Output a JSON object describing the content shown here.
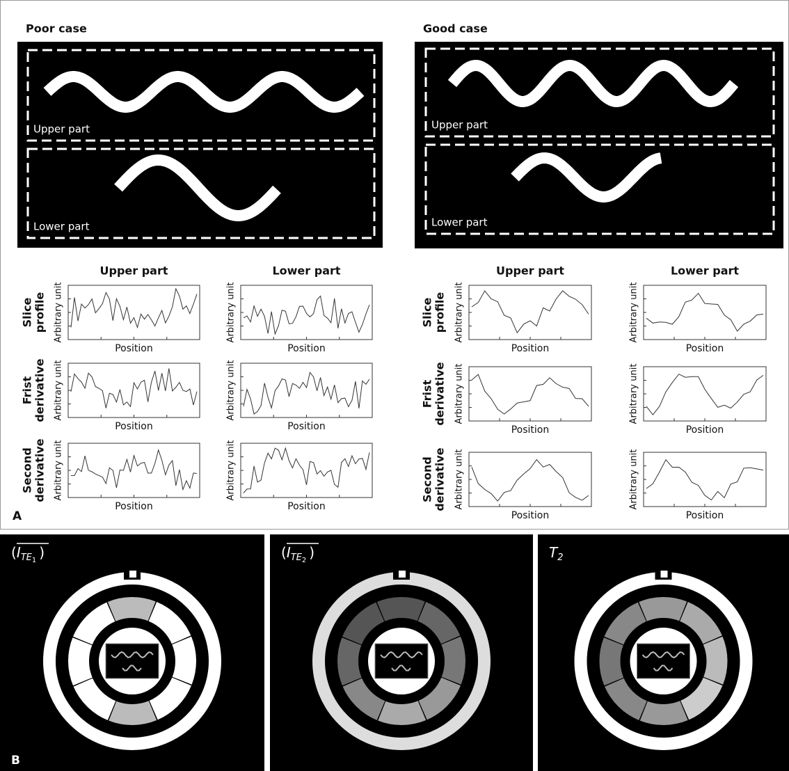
{
  "panel_a": {
    "label": "A",
    "y_label": "Arbitrary unit",
    "x_label": "Position",
    "row_labels": [
      [
        "Slice",
        "profile"
      ],
      [
        "Frist",
        "derivative"
      ],
      [
        "Second",
        "derivative"
      ]
    ],
    "cases": [
      {
        "title": "Poor case",
        "image_labels": [
          "Upper part",
          "Lower part"
        ],
        "column_titles": [
          "Upper part",
          "Lower part"
        ]
      },
      {
        "title": "Good case",
        "image_labels": [
          "Upper part",
          "Lower part"
        ],
        "column_titles": [
          "Upper part",
          "Lower part"
        ]
      }
    ]
  },
  "panel_b": {
    "label": "B",
    "images": [
      {
        "open": "(",
        "symbol": "I",
        "subscript": "TE",
        "index": "1",
        "close": ")"
      },
      {
        "open": "(",
        "symbol": "I",
        "subscript": "TE",
        "index": "2",
        "close": ")"
      },
      {
        "symbol": "T",
        "subscript": "2"
      }
    ]
  }
}
